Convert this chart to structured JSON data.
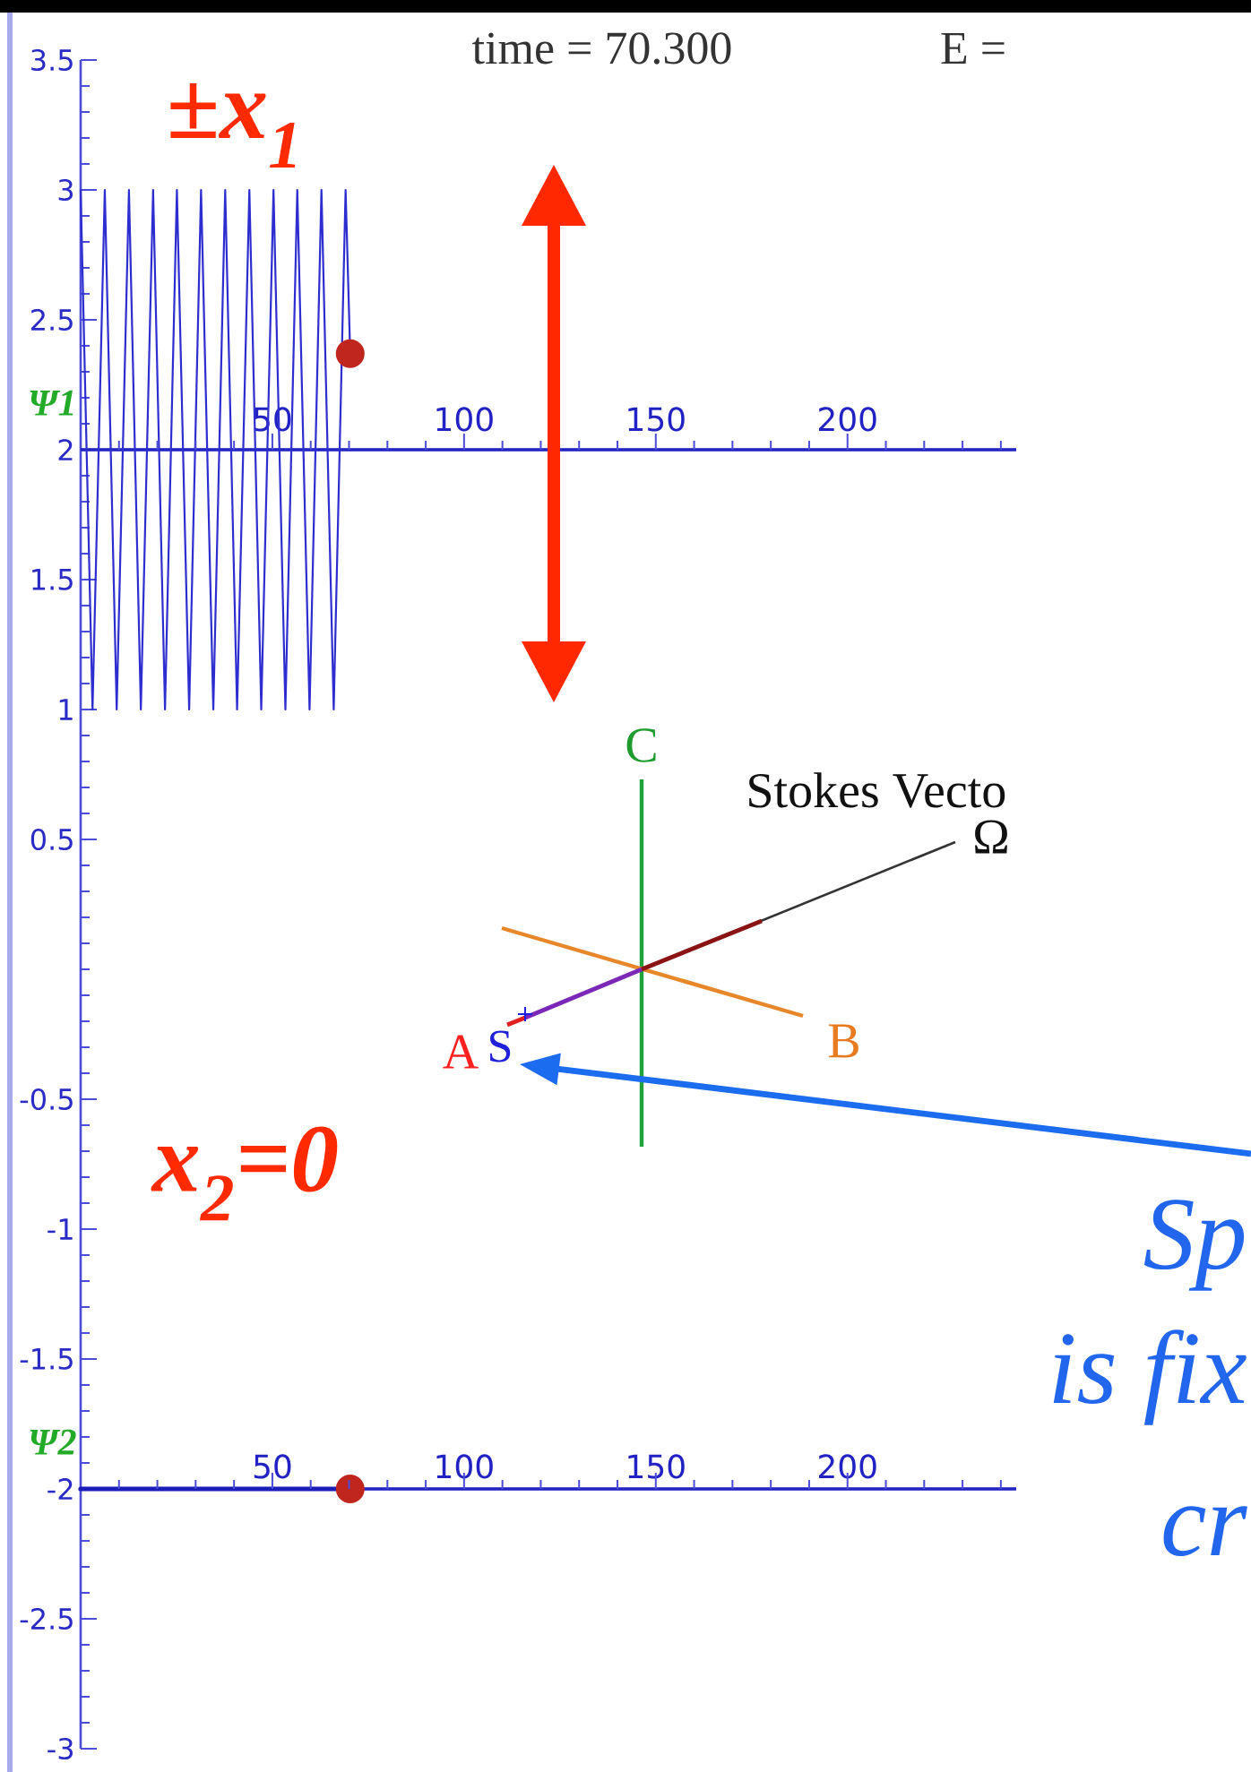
{
  "chart_data": {
    "type": "line",
    "title": "time = 70.300",
    "annotations": [
      "E =",
      "±x$_{1}$",
      "C",
      "Stokes Vecto",
      "Ω",
      "A",
      "S",
      "B",
      "x$_{2}$=0",
      "Sp",
      "is fix",
      "cr"
    ],
    "xlim": [
      0,
      244
    ],
    "xticks": [
      50,
      100,
      150,
      200
    ],
    "x2lim": [
      0,
      244
    ],
    "x2ticks": [
      50,
      100,
      150,
      200
    ],
    "ylim": [
      -3,
      3.5
    ],
    "yticks": [
      -3,
      {
        "value": -2.9,
        "label": null
      },
      {
        "value": -2.8,
        "label": null
      },
      {
        "value": -2.7,
        "label": null
      },
      {
        "value": -2.6,
        "label": null
      },
      -2.5,
      {
        "value": -2.4,
        "label": null
      },
      {
        "value": -2.3,
        "label": null
      },
      {
        "value": -2.2,
        "label": null
      },
      {
        "value": -2.1,
        "label": null
      },
      -2,
      {
        "value": -1.9,
        "label": null
      },
      {
        "value": -1.8,
        "label": null
      },
      {
        "value": -1.7,
        "label": null
      },
      {
        "value": -1.6,
        "label": null
      },
      -1.5,
      {
        "value": -1.4,
        "label": null
      },
      {
        "value": -1.3,
        "label": null
      },
      {
        "value": -1.2,
        "label": null
      },
      {
        "value": -1.1,
        "label": null
      },
      -1,
      {
        "value": -0.9,
        "label": null
      },
      {
        "value": -0.8,
        "label": null
      },
      {
        "value": -0.7,
        "label": null
      },
      {
        "value": -0.6,
        "label": null
      },
      -0.5,
      {
        "value": -0.4,
        "label": null
      },
      {
        "value": -0.3,
        "label": null
      },
      {
        "value": -0.2,
        "label": null
      },
      {
        "value": -0.1,
        "label": null
      },
      {
        "value": 0,
        "label": null
      },
      {
        "value": 0.1,
        "label": null
      },
      {
        "value": 0.2,
        "label": null
      },
      {
        "value": 0.3,
        "label": null
      },
      {
        "value": 0.4,
        "label": null
      },
      0.5,
      {
        "value": 0.6,
        "label": null
      },
      {
        "value": 0.7,
        "label": null
      },
      {
        "value": 0.8,
        "label": null
      },
      {
        "value": 0.9,
        "label": null
      },
      1,
      {
        "value": 1.1,
        "label": null
      },
      {
        "value": 1.2,
        "label": null
      },
      {
        "value": 1.3,
        "label": null
      },
      {
        "value": 1.4,
        "label": null
      },
      1.5,
      {
        "value": 1.6,
        "label": null
      },
      {
        "value": 1.7,
        "label": null
      },
      {
        "value": 1.8,
        "label": null
      },
      {
        "value": 1.9,
        "label": null
      },
      2,
      {
        "value": 2.1,
        "label": null
      },
      {
        "value": 2.2,
        "label": null
      },
      {
        "value": 2.3,
        "label": null
      },
      {
        "value": 2.4,
        "label": null
      },
      2.5,
      {
        "value": 2.6,
        "label": null
      },
      {
        "value": 2.7,
        "label": null
      },
      {
        "value": 2.8,
        "label": null
      },
      {
        "value": 2.9,
        "label": null
      },
      3,
      {
        "value": 3.1,
        "label": null
      },
      {
        "value": 3.2,
        "label": null
      },
      {
        "value": 3.3,
        "label": null
      },
      {
        "value": 3.4,
        "label": null
      },
      3.5
    ],
    "ref_lines": [
      {
        "axis": "y",
        "value": 2,
        "label": "Ψ1",
        "color": "#2424c2"
      },
      {
        "axis": "y",
        "value": -2,
        "label": "Ψ2",
        "color": "#2424c2"
      }
    ],
    "series": [
      {
        "color": "#2e2ed0",
        "x": [
          0,
          3.1,
          6.3,
          9.4,
          12.6,
          15.7,
          18.9,
          22.0,
          25.1,
          28.3,
          31.4,
          34.6,
          37.7,
          40.8,
          44.0,
          47.1,
          50.3,
          53.4,
          56.5,
          59.7,
          62.8,
          66.0,
          69.1,
          70.3
        ],
        "values": [
          3,
          1,
          3,
          1,
          3,
          1,
          3,
          1,
          3,
          1,
          3,
          1,
          3,
          1,
          3,
          1,
          3,
          1,
          3,
          1,
          3,
          1,
          3,
          2.37
        ]
      },
      {
        "color": "#1c1cb8",
        "x": [
          0,
          70.3
        ],
        "values": [
          -2,
          -2
        ]
      },
      {
        "type": "scatter",
        "color": "#c0261e",
        "marker": "circle",
        "x": [
          70.3,
          70.3
        ],
        "values": [
          2.37,
          -2
        ]
      }
    ]
  }
}
